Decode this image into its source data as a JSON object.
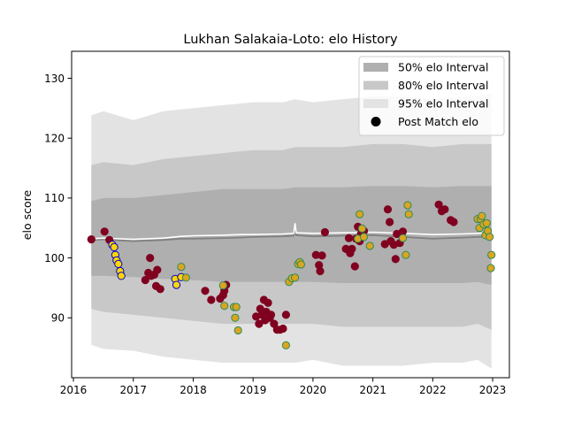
{
  "chart_data": {
    "type": "scatter",
    "title": "Lukhan Salakaia-Loto: elo History",
    "xlabel": "",
    "ylabel": "elo score",
    "xlim": [
      2015.97,
      2023.28
    ],
    "ylim": [
      80.0,
      134.5
    ],
    "x_ticks": [
      2016,
      2017,
      2018,
      2019,
      2020,
      2021,
      2022,
      2023
    ],
    "y_ticks": [
      90,
      100,
      110,
      120,
      130
    ],
    "grid": false,
    "legend_position": "top-right",
    "legend": [
      {
        "label": "50% elo Interval",
        "kind": "band",
        "color": "#afafaf"
      },
      {
        "label": "80% elo Interval",
        "kind": "band",
        "color": "#c8c8c8"
      },
      {
        "label": "95% elo Interval",
        "kind": "band",
        "color": "#e3e3e3"
      },
      {
        "label": "Post Match elo",
        "kind": "marker",
        "color": "#000000"
      }
    ],
    "bands": {
      "x": [
        2016.3,
        2016.5,
        2017.0,
        2017.5,
        2018.0,
        2018.5,
        2019.0,
        2019.5,
        2019.7,
        2020.0,
        2020.5,
        2021.0,
        2021.5,
        2022.0,
        2022.5,
        2022.75,
        2022.98
      ],
      "band95_lower": [
        85.5,
        84.8,
        84.5,
        83.5,
        83.0,
        82.5,
        82.5,
        82.5,
        82.5,
        83.0,
        82.0,
        82.0,
        82.0,
        82.5,
        82.5,
        83.0,
        81.5
      ],
      "band95_upper": [
        123.8,
        124.5,
        123.0,
        124.5,
        125.0,
        125.5,
        126.0,
        126.0,
        126.5,
        126.0,
        126.5,
        127.0,
        127.0,
        126.5,
        127.0,
        127.0,
        127.5
      ],
      "band80_lower": [
        91.5,
        91.0,
        90.5,
        90.0,
        89.5,
        89.0,
        89.0,
        89.0,
        89.0,
        89.0,
        88.5,
        88.5,
        88.5,
        88.5,
        88.5,
        89.0,
        88.0
      ],
      "band80_upper": [
        115.5,
        116.0,
        115.5,
        116.5,
        117.0,
        117.5,
        118.0,
        118.0,
        118.5,
        118.5,
        118.5,
        119.0,
        119.0,
        118.5,
        119.0,
        119.0,
        119.0
      ],
      "band50_lower": [
        97.0,
        97.0,
        96.8,
        96.5,
        96.3,
        96.0,
        96.0,
        96.0,
        96.0,
        96.0,
        95.8,
        95.8,
        95.8,
        95.8,
        95.8,
        96.0,
        95.5
      ],
      "band50_upper": [
        109.5,
        110.0,
        110.0,
        110.5,
        111.0,
        111.5,
        111.5,
        111.5,
        111.8,
        111.8,
        111.8,
        112.0,
        112.0,
        111.8,
        112.0,
        112.0,
        112.0
      ]
    },
    "mean_line": {
      "x": [
        2016.3,
        2016.5,
        2017.0,
        2017.5,
        2017.8,
        2018.0,
        2018.5,
        2018.8,
        2019.0,
        2019.5,
        2019.68,
        2019.7,
        2019.72,
        2020.0,
        2020.5,
        2021.0,
        2021.5,
        2022.0,
        2022.5,
        2022.98
      ],
      "y": [
        103.2,
        103.3,
        103.1,
        103.3,
        103.6,
        103.7,
        103.8,
        103.9,
        103.9,
        104.0,
        104.1,
        105.8,
        104.2,
        104.1,
        104.2,
        104.3,
        104.1,
        103.9,
        104.0,
        104.2
      ]
    },
    "median_line": {
      "x": [
        2016.3,
        2016.5,
        2017.0,
        2017.5,
        2017.8,
        2018.0,
        2018.5,
        2018.8,
        2019.0,
        2019.5,
        2019.68,
        2019.7,
        2019.72,
        2020.0,
        2020.5,
        2021.0,
        2021.5,
        2022.0,
        2022.5,
        2022.98
      ],
      "y": [
        103.0,
        103.1,
        102.8,
        103.0,
        103.2,
        103.2,
        103.3,
        103.4,
        103.5,
        103.6,
        103.7,
        105.5,
        103.8,
        103.6,
        103.7,
        103.8,
        103.5,
        103.2,
        103.4,
        103.6
      ]
    },
    "series": [
      {
        "fill": "#800020",
        "stroke": "#800020",
        "x": [
          2016.3,
          2016.52,
          2016.6,
          2017.2,
          2017.25,
          2017.28,
          2017.3,
          2017.35,
          2017.38,
          2017.4,
          2017.45,
          2018.2,
          2018.3,
          2018.45,
          2018.5,
          2018.52,
          2018.55,
          2019.05,
          2019.1,
          2019.12,
          2019.15,
          2019.18,
          2019.2,
          2019.22,
          2019.25,
          2019.28,
          2019.3,
          2019.35,
          2019.4,
          2019.45,
          2019.5,
          2019.55,
          2020.05,
          2020.1,
          2020.12,
          2020.15,
          2020.2,
          2020.55,
          2020.6,
          2020.62,
          2020.65,
          2020.7,
          2020.72,
          2020.75,
          2020.78,
          2020.8,
          2020.82,
          2020.85,
          2021.2,
          2021.25,
          2021.28,
          2021.3,
          2021.35,
          2021.38,
          2021.4,
          2021.45,
          2021.5,
          2022.1,
          2022.15,
          2022.2,
          2022.3,
          2022.35
        ],
        "y": [
          103.1,
          104.4,
          103.0,
          96.3,
          97.5,
          100.0,
          97.0,
          97.2,
          95.3,
          98.0,
          94.8,
          94.5,
          93.0,
          93.2,
          93.8,
          94.5,
          95.5,
          90.2,
          89.0,
          91.5,
          90.5,
          93.0,
          89.6,
          91.0,
          92.5,
          90.0,
          90.5,
          89.0,
          88.0,
          88.0,
          88.2,
          90.5,
          100.5,
          98.8,
          97.8,
          100.4,
          104.3,
          101.5,
          103.3,
          100.8,
          101.5,
          98.6,
          103.2,
          105.2,
          102.8,
          104.0,
          104.5,
          104.5,
          102.3,
          108.1,
          106.0,
          102.8,
          102.2,
          99.8,
          104.0,
          102.5,
          104.4,
          108.9,
          107.8,
          108.1,
          106.3,
          106.0
        ]
      },
      {
        "fill": "#ffd700",
        "stroke": "#0000cd",
        "x": [
          2016.65,
          2016.68,
          2016.7,
          2016.72,
          2016.75,
          2016.78,
          2016.8,
          2017.7,
          2017.72,
          2017.8
        ],
        "y": [
          102.2,
          101.8,
          100.5,
          99.6,
          99.0,
          97.8,
          97.0,
          96.5,
          95.5,
          96.8
        ]
      },
      {
        "fill": "#daa520",
        "stroke": "#2e8b57",
        "x": [
          2017.8,
          2017.88,
          2018.5,
          2018.52,
          2018.68,
          2018.7,
          2018.72,
          2018.75,
          2019.55,
          2019.6,
          2019.65,
          2019.7,
          2019.75,
          2019.78,
          2019.8,
          2020.75,
          2020.78,
          2020.82,
          2020.85,
          2020.95,
          2021.5,
          2021.55,
          2021.58,
          2021.6,
          2022.75,
          2022.78,
          2022.8,
          2022.82,
          2022.85,
          2022.88,
          2022.9,
          2022.92,
          2022.95,
          2022.97,
          2022.98
        ],
        "y": [
          98.5,
          96.7,
          95.4,
          92.0,
          91.8,
          90.0,
          91.8,
          87.9,
          85.4,
          96.0,
          96.6,
          96.7,
          99.0,
          99.3,
          98.9,
          103.2,
          107.3,
          104.9,
          103.5,
          102.0,
          103.3,
          100.5,
          108.8,
          107.3,
          106.5,
          105.0,
          106.5,
          107.0,
          105.6,
          103.8,
          105.8,
          104.5,
          103.5,
          98.3,
          100.5
        ]
      }
    ]
  }
}
